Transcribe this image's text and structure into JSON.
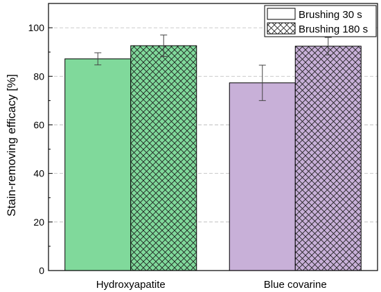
{
  "chart_data": {
    "type": "bar",
    "categories": [
      "Hydroxyapatite",
      "Blue covarine"
    ],
    "category_colors": [
      "#80d99b",
      "#c8b0d8"
    ],
    "series": [
      {
        "name": "Brushing 30 s",
        "pattern": "solid",
        "values": [
          87.2,
          77.3
        ],
        "errors": [
          2.5,
          7.3
        ]
      },
      {
        "name": "Brushing 180 s",
        "pattern": "crosshatch",
        "values": [
          92.6,
          92.4
        ],
        "errors": [
          4.4,
          3.6
        ]
      }
    ],
    "title": "",
    "xlabel": "",
    "ylabel": "Stain-removing efficacy [%]",
    "ylim": [
      0,
      110
    ],
    "yticks": [
      0,
      20,
      40,
      60,
      80,
      100
    ],
    "grid": true,
    "legend_position": "top-right"
  }
}
